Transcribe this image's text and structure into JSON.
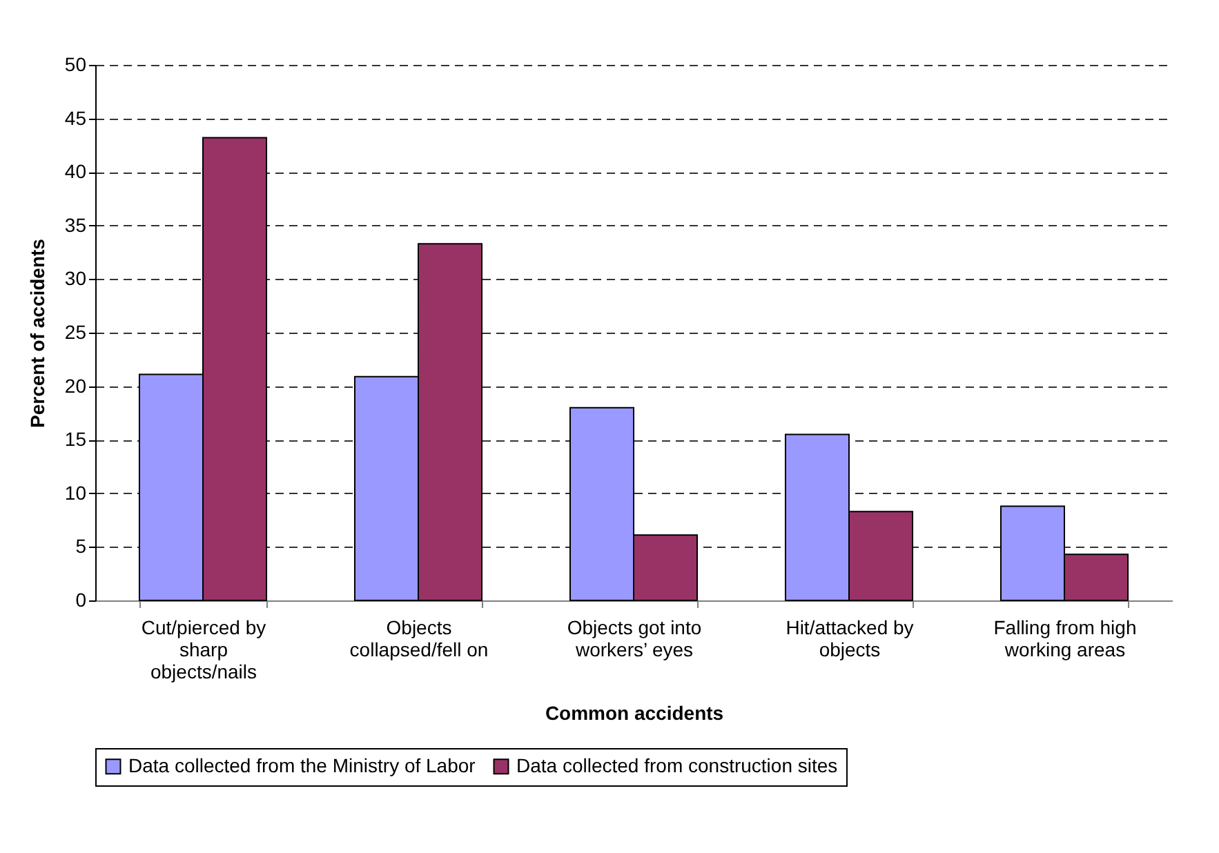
{
  "chart_data": {
    "type": "bar",
    "xlabel": "Common accidents",
    "ylabel": "Percent of accidents",
    "categories": [
      "Cut/pierced by sharp objects/nails",
      "Objects collapsed/fell on",
      "Objects got into workers’ eyes",
      "Hit/attacked by objects",
      "Falling from high working areas"
    ],
    "series": [
      {
        "name": "Data collected from the Ministry of Labor",
        "color": "#9999ff",
        "values": [
          21.1,
          20.9,
          18.0,
          15.5,
          8.8
        ]
      },
      {
        "name": "Data collected from construction sites",
        "color": "#993366",
        "values": [
          43.2,
          33.3,
          6.1,
          8.3,
          4.3
        ]
      }
    ],
    "ylim": [
      0,
      50
    ],
    "yticks": [
      0,
      5,
      10,
      15,
      20,
      25,
      30,
      35,
      40,
      45,
      50
    ],
    "grid": "y",
    "legend": "bottom"
  }
}
